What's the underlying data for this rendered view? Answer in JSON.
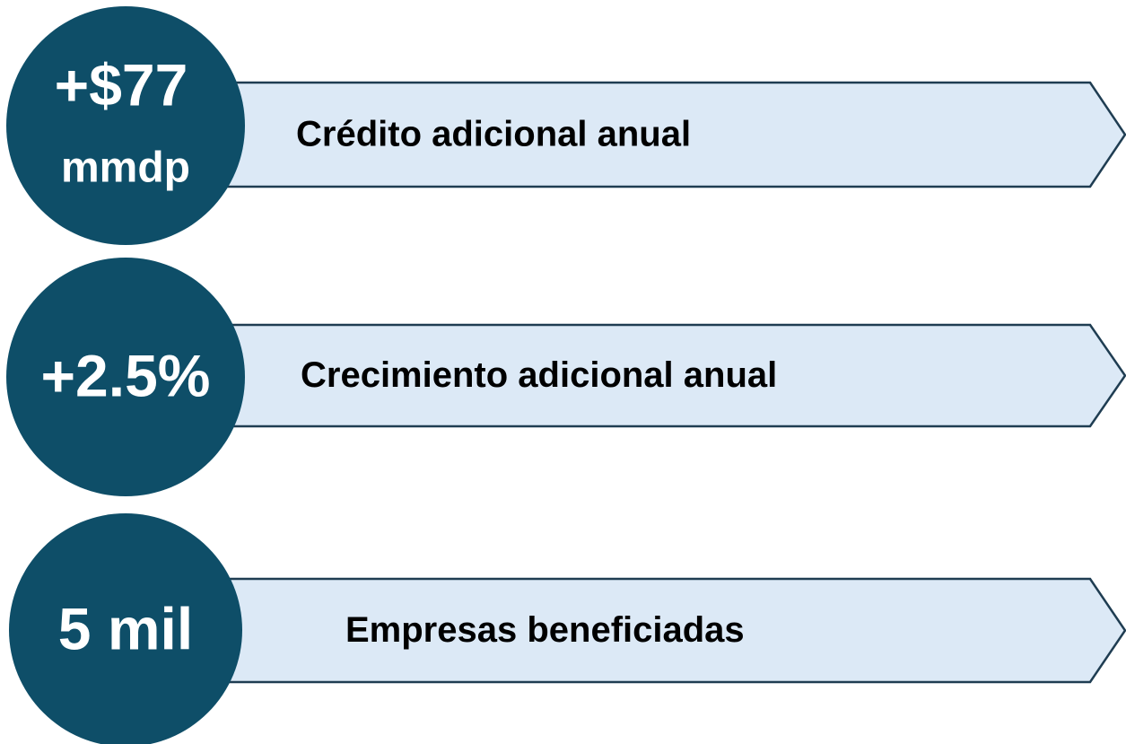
{
  "items": [
    {
      "value": [
        "+$77",
        "mmdp"
      ],
      "label": "Crédito adicional anual"
    },
    {
      "value": [
        "+2.5%"
      ],
      "label": "Crecimiento adicional anual"
    },
    {
      "value": [
        "5 mil"
      ],
      "label": "Empresas beneficiadas"
    }
  ]
}
